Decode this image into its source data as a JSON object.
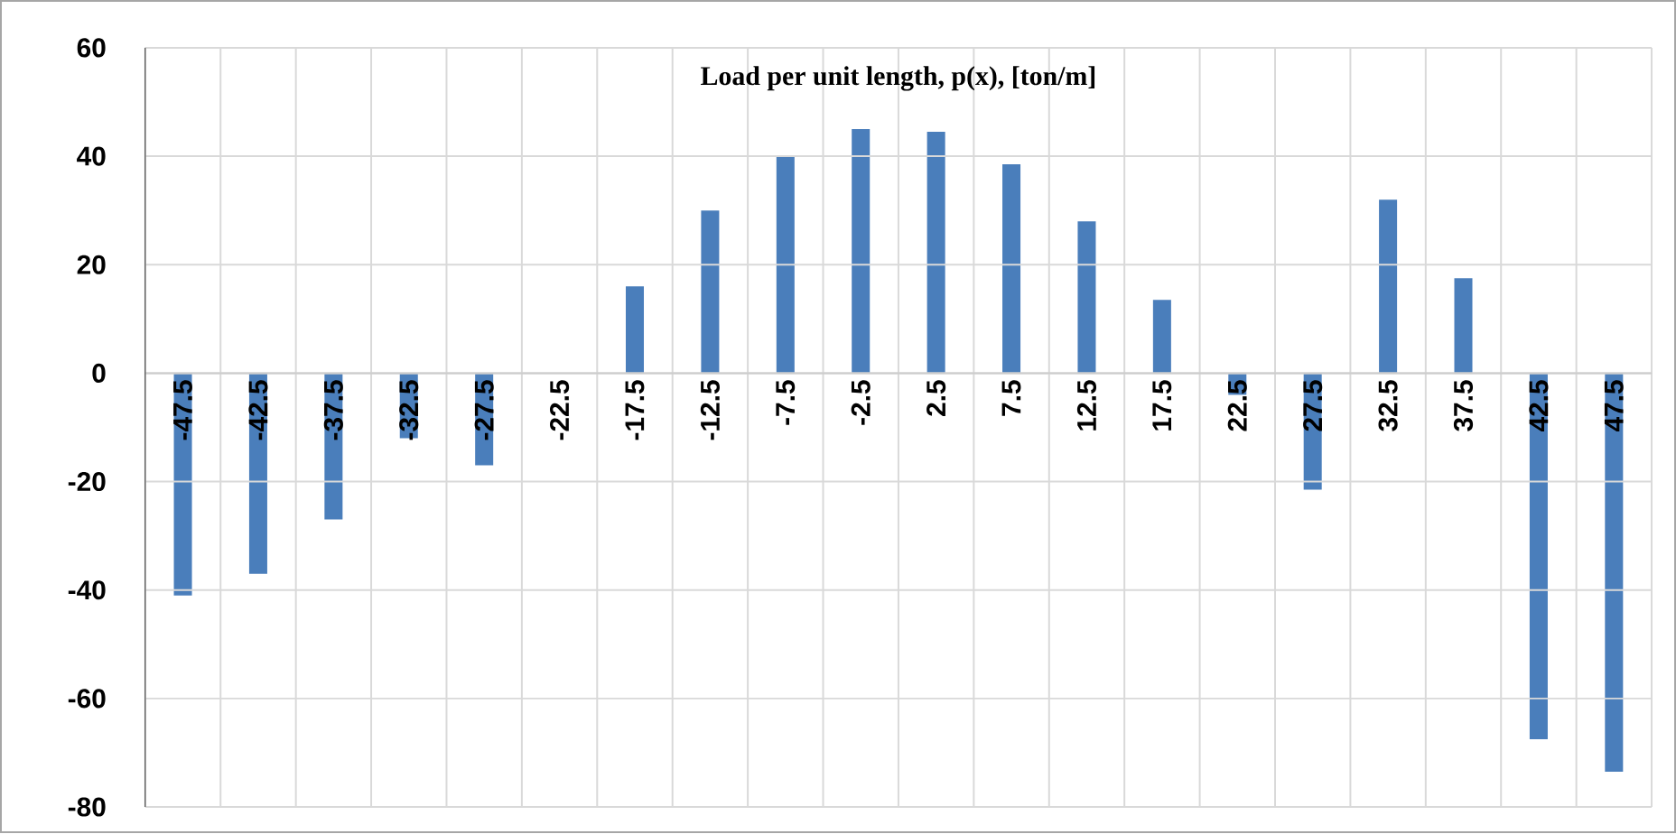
{
  "chart_data": {
    "type": "bar",
    "title": "Load per unit length, p(x), [ton/m]",
    "categories": [
      "-47.5",
      "-42.5",
      "-37.5",
      "-32.5",
      "-27.5",
      "-22.5",
      "-17.5",
      "-12.5",
      "-7.5",
      "-2.5",
      "2.5",
      "7.5",
      "12.5",
      "17.5",
      "22.5",
      "27.5",
      "32.5",
      "37.5",
      "42.5",
      "47.5"
    ],
    "values": [
      -41,
      -37,
      -27,
      -12,
      -17,
      0,
      16,
      30,
      40,
      45,
      44.5,
      38.5,
      28,
      13.5,
      -4,
      -21.5,
      32,
      17.5,
      -67.5,
      -73.5
    ],
    "color": "#4a7ebb",
    "ylim": [
      -80,
      60
    ],
    "yticks": [
      -80,
      -60,
      -40,
      -20,
      0,
      20,
      40,
      60
    ],
    "grid": true
  }
}
